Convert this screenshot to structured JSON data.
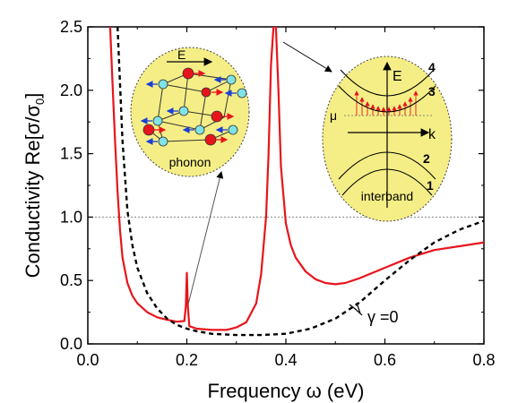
{
  "chart_data": {
    "type": "line",
    "xlabel": "Frequency ω (eV)",
    "ylabel_main": "Conductivity Re[σ/σ",
    "ylabel_sub": "0",
    "ylabel_end": "]",
    "xlim": [
      0.0,
      0.8
    ],
    "ylim": [
      0.0,
      2.5
    ],
    "x_ticks": [
      "0.0",
      "0.2",
      "0.4",
      "0.6",
      "0.8"
    ],
    "y_ticks": [
      "0.0",
      "0.5",
      "1.0",
      "1.5",
      "2.0",
      "2.5"
    ],
    "reference_line_y": 1.0,
    "series": [
      {
        "style": "solid",
        "color": "#e8141b",
        "x": [
          0.045,
          0.05,
          0.055,
          0.06,
          0.065,
          0.07,
          0.08,
          0.09,
          0.1,
          0.12,
          0.14,
          0.16,
          0.18,
          0.195,
          0.198,
          0.2,
          0.202,
          0.205,
          0.22,
          0.25,
          0.28,
          0.3,
          0.32,
          0.34,
          0.35,
          0.36,
          0.365,
          0.37,
          0.375,
          0.38,
          0.385,
          0.39,
          0.4,
          0.41,
          0.42,
          0.44,
          0.46,
          0.48,
          0.5,
          0.52,
          0.55,
          0.6,
          0.65,
          0.7,
          0.75,
          0.8
        ],
        "y": [
          2.5,
          2.05,
          1.6,
          1.2,
          0.9,
          0.68,
          0.48,
          0.38,
          0.32,
          0.25,
          0.21,
          0.19,
          0.175,
          0.18,
          0.3,
          0.56,
          0.3,
          0.14,
          0.12,
          0.11,
          0.11,
          0.13,
          0.17,
          0.32,
          0.55,
          1.0,
          1.5,
          2.2,
          2.5,
          2.5,
          2.0,
          1.4,
          0.95,
          0.78,
          0.68,
          0.57,
          0.51,
          0.48,
          0.47,
          0.48,
          0.52,
          0.6,
          0.68,
          0.74,
          0.77,
          0.8
        ]
      },
      {
        "style": "dashed",
        "color": "#000000",
        "label": "γ =0",
        "x": [
          0.06,
          0.07,
          0.08,
          0.09,
          0.1,
          0.12,
          0.14,
          0.16,
          0.18,
          0.2,
          0.22,
          0.25,
          0.3,
          0.35,
          0.4,
          0.45,
          0.5,
          0.55,
          0.6,
          0.65,
          0.7,
          0.75,
          0.8
        ],
        "y": [
          2.5,
          1.6,
          1.05,
          0.78,
          0.6,
          0.4,
          0.28,
          0.2,
          0.15,
          0.12,
          0.1,
          0.08,
          0.07,
          0.07,
          0.08,
          0.12,
          0.2,
          0.33,
          0.5,
          0.66,
          0.8,
          0.9,
          0.97
        ]
      }
    ],
    "annotations": [
      {
        "text": "γ =0",
        "at": [
          0.61,
          0.2
        ]
      }
    ],
    "insets": [
      {
        "name": "phonon",
        "labels": [
          "E",
          "phonon"
        ]
      },
      {
        "name": "interband",
        "labels": [
          "E",
          "k",
          "μ",
          "1",
          "2",
          "3",
          "4",
          "interband"
        ]
      }
    ]
  }
}
